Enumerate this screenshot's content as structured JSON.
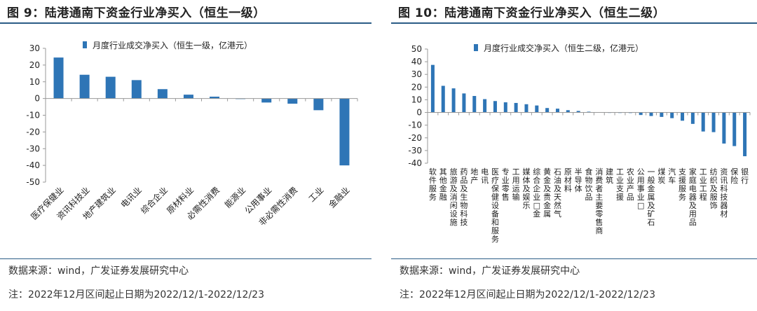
{
  "panels": [
    {
      "title": "图 9：陆港通南下资金行业净买入（恒生一级）",
      "source": "数据来源：wind，广发证券发展研究中心",
      "note": "注：2022年12月区间起止日期为2022/12/1-2022/12/23"
    },
    {
      "title": "图 10：陆港通南下资金行业净买入（恒生二级）",
      "source": "数据来源：wind，广发证券发展研究中心",
      "note": "注：2022年12月区间起止日期为2022/12/1-2022/12/23"
    }
  ],
  "colors": {
    "bar": "#2e75b6",
    "rule": "#2b5c86",
    "axis": "#999999"
  },
  "chart_data": [
    {
      "type": "bar",
      "legend": "月度行业成交净买入（恒生一级，亿港元）",
      "categories": [
        "医疗保健业",
        "资讯科技业",
        "地产建筑业",
        "电讯业",
        "综合企业",
        "原材料业",
        "必需性消费",
        "能源业",
        "公用事业",
        "非必需性消费",
        "工业",
        "金融业"
      ],
      "series": [
        {
          "name": "月度行业成交净买入（恒生一级，亿港元）",
          "values": [
            24.5,
            14.2,
            13.0,
            11.0,
            5.6,
            2.3,
            1.1,
            -0.3,
            -2.4,
            -3.1,
            -7.0,
            -40.0
          ]
        }
      ],
      "ylim": [
        -50,
        30
      ],
      "yticks": [
        30,
        20,
        10,
        0,
        -10,
        -20,
        -30,
        -40,
        -50
      ],
      "legend_position": "top",
      "grid": false
    },
    {
      "type": "bar",
      "legend": "月度行业成交净买入（恒生二级，亿港元）",
      "categories": [
        "软件服务",
        "其他金融",
        "旅游及消闲设施",
        "药品及生物科技",
        "地产",
        "电讯",
        "医疗保健设备和服务",
        "专业零售",
        "工用运输",
        "媒体及娱乐",
        "综合企业□金",
        "黄金及贵金属",
        "石油及天然气",
        "原材料",
        "半导体",
        "食物饮品",
        "消费者主要零售商",
        "建筑",
        "工业支援",
        "农业产品",
        "公用事业□",
        "一般金属及矿石",
        "煤炭",
        "汽车",
        "支援服务",
        "家庭电器及用品",
        "工业工程",
        "纺织及服饰",
        "资讯科技器材",
        "保险",
        "银行"
      ],
      "series": [
        {
          "name": "月度行业成交净买入（恒生二级，亿港元）",
          "values": [
            37.5,
            21.0,
            19.0,
            15.0,
            13.0,
            10.5,
            9.0,
            8.0,
            7.5,
            6.5,
            5.5,
            3.5,
            3.0,
            1.8,
            1.2,
            0.6,
            0.2,
            0.1,
            0.05,
            -0.1,
            -2.0,
            -2.8,
            -3.5,
            -4.5,
            -6.5,
            -9.0,
            -15.0,
            -15.5,
            -24.5,
            -26.5,
            -34.5
          ]
        }
      ],
      "ylim": [
        -40,
        50
      ],
      "yticks": [
        50,
        40,
        30,
        20,
        10,
        0,
        -10,
        -20,
        -30,
        -40
      ],
      "legend_position": "top",
      "grid": false
    }
  ]
}
